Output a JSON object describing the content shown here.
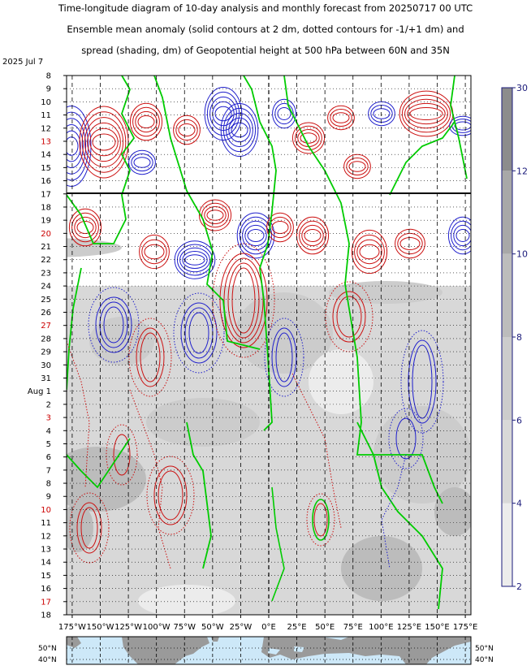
{
  "chart_data": {
    "type": "heatmap",
    "title_lines": [
      "Time-longitude diagram of 10-day analysis and monthly forecast from 20250717 00 UTC",
      "Ensemble mean anomaly (solid contours at 2 dm, dotted contours for -1/+1 dm) and",
      "spread (shading, dm) of Geopotential height at 500 hPa between 60N and 35N"
    ],
    "forecast_start": "2025-07-17",
    "x_axis": {
      "min": -180,
      "max": 180,
      "ticks": [
        -175,
        -150,
        -125,
        -100,
        -75,
        -50,
        -25,
        0,
        25,
        50,
        75,
        100,
        125,
        150,
        175
      ],
      "tick_labels": [
        "175°W",
        "150°W",
        "125°W",
        "100°W",
        "75°W",
        "50°W",
        "25°W",
        "0°E",
        "25°E",
        "50°E",
        "75°E",
        "100°E",
        "125°E",
        "150°E",
        "175°E"
      ]
    },
    "y_axis": {
      "start_label": "2025  Jul  7",
      "rows": [
        {
          "label": "8",
          "weekend": false
        },
        {
          "label": "9",
          "weekend": false
        },
        {
          "label": "10",
          "weekend": false
        },
        {
          "label": "11",
          "weekend": false
        },
        {
          "label": "12",
          "weekend": false
        },
        {
          "label": "13",
          "weekend": true
        },
        {
          "label": "14",
          "weekend": false
        },
        {
          "label": "15",
          "weekend": false
        },
        {
          "label": "16",
          "weekend": false
        },
        {
          "label": "17",
          "weekend": false
        },
        {
          "label": "18",
          "weekend": false
        },
        {
          "label": "19",
          "weekend": false
        },
        {
          "label": "20",
          "weekend": true
        },
        {
          "label": "21",
          "weekend": false
        },
        {
          "label": "22",
          "weekend": false
        },
        {
          "label": "23",
          "weekend": false
        },
        {
          "label": "24",
          "weekend": false
        },
        {
          "label": "25",
          "weekend": false
        },
        {
          "label": "26",
          "weekend": false
        },
        {
          "label": "27",
          "weekend": true
        },
        {
          "label": "28",
          "weekend": false
        },
        {
          "label": "29",
          "weekend": false
        },
        {
          "label": "30",
          "weekend": false
        },
        {
          "label": "31",
          "weekend": false
        },
        {
          "label": "Aug  1",
          "weekend": false
        },
        {
          "label": "2",
          "weekend": false
        },
        {
          "label": "3",
          "weekend": true
        },
        {
          "label": "4",
          "weekend": false
        },
        {
          "label": "5",
          "weekend": false
        },
        {
          "label": "6",
          "weekend": false
        },
        {
          "label": "7",
          "weekend": false
        },
        {
          "label": "8",
          "weekend": false
        },
        {
          "label": "9",
          "weekend": false
        },
        {
          "label": "10",
          "weekend": true
        },
        {
          "label": "11",
          "weekend": false
        },
        {
          "label": "12",
          "weekend": false
        },
        {
          "label": "13",
          "weekend": false
        },
        {
          "label": "14",
          "weekend": false
        },
        {
          "label": "15",
          "weekend": false
        },
        {
          "label": "16",
          "weekend": false
        },
        {
          "label": "17",
          "weekend": true
        },
        {
          "label": "18",
          "weekend": false
        }
      ]
    },
    "colorbar": {
      "ticks": [
        2,
        4,
        6,
        8,
        10,
        12,
        30
      ],
      "colors": [
        "#ececec",
        "#d8d8d8",
        "#cccccc",
        "#bcbcbc",
        "#a8a8a8",
        "#8c8c8c"
      ]
    },
    "contour_colors": {
      "positive": "#cc1111",
      "negative": "#1f1fcc",
      "zero": "#00cc00",
      "weekend_label": "#cc0000",
      "axis_label": "#1a1a7a"
    },
    "map_strip": {
      "lat_labels": [
        "50°N",
        "40°N"
      ],
      "ocean_color": "#cde8f8",
      "land_color": "#9a9a9a"
    }
  }
}
